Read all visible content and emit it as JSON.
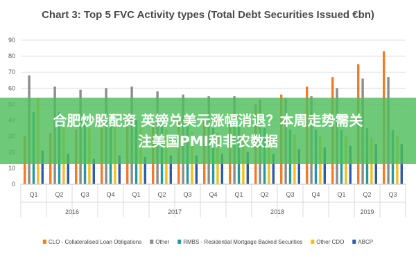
{
  "colors": {
    "CLO": "#f07b2a",
    "Other": "#8c8c8c",
    "RMBS": "#1f9aa0",
    "OtherCDO": "#f2bf1c",
    "ABCP": "#2e5aa8",
    "grid": "#e3e3e3",
    "banner": "#4ebe5c"
  },
  "banner": {
    "line1": "合肥炒股配资 英镑兑美元涨幅消退？本周走势需关",
    "line2": "注美国PMI和非农数据"
  },
  "chart_data": {
    "type": "bar",
    "title": "Chart 3: Top 5 FVC Activity types (Total Debt Securities Issued €bn)",
    "ylim": [
      0,
      90
    ],
    "yticks": [
      0,
      10,
      20,
      30,
      40,
      50,
      60,
      70,
      80,
      90
    ],
    "grid": true,
    "legend_position": "bottom",
    "categories": [
      "Q1",
      "Q2",
      "Q3",
      "Q4",
      "Q1",
      "Q2",
      "Q3",
      "Q4",
      "Q1",
      "Q2",
      "Q3",
      "Q4",
      "Q1",
      "Q2",
      "Q3"
    ],
    "years": [
      {
        "label": "2016",
        "span": 4
      },
      {
        "label": "2017",
        "span": 4
      },
      {
        "label": "2018",
        "span": 4
      },
      {
        "label": "2019",
        "span": 3
      }
    ],
    "series": [
      {
        "name": "CLO - Collateralised Loan Obligations",
        "color_key": "CLO",
        "values": [
          30,
          32,
          34,
          35,
          36,
          38,
          40,
          41,
          43,
          50,
          56,
          61,
          67,
          75,
          83
        ]
      },
      {
        "name": "Other",
        "color_key": "Other",
        "values": [
          68,
          61,
          59,
          60,
          61,
          58,
          56,
          55,
          55,
          53,
          54,
          55,
          60,
          66,
          67
        ]
      },
      {
        "name": "RMBS - Residential Mortgage Backed Securities",
        "color_key": "RMBS",
        "values": [
          45,
          45,
          39,
          38,
          40,
          37,
          36,
          35,
          36,
          35,
          34,
          34,
          34,
          35,
          34
        ]
      },
      {
        "name": "Other CDO",
        "color_key": "OtherCDO",
        "values": [
          54,
          37,
          35,
          36,
          35,
          34,
          33,
          32,
          32,
          31,
          31,
          30,
          30,
          29,
          30
        ]
      },
      {
        "name": "ABCP",
        "color_key": "ABCP",
        "values": [
          21,
          19,
          16,
          18,
          17,
          18,
          18,
          19,
          20,
          19,
          22,
          23,
          24,
          25,
          25
        ]
      }
    ]
  }
}
